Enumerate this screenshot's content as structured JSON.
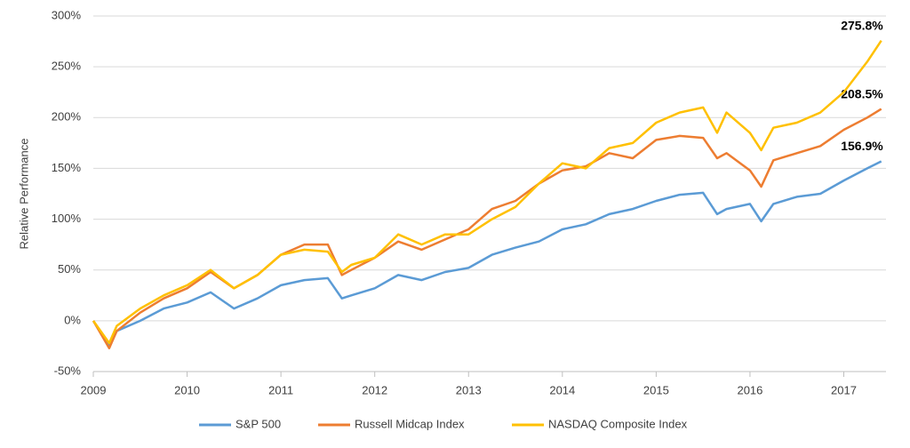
{
  "chart_data": {
    "type": "line",
    "y_label": "Relative Performance",
    "x": [
      2009,
      2009.17,
      2009.25,
      2009.5,
      2009.75,
      2010,
      2010.25,
      2010.5,
      2010.75,
      2011,
      2011.25,
      2011.5,
      2011.65,
      2011.75,
      2012,
      2012.25,
      2012.5,
      2012.75,
      2013,
      2013.25,
      2013.5,
      2013.75,
      2014,
      2014.25,
      2014.5,
      2014.75,
      2015,
      2015.25,
      2015.5,
      2015.65,
      2015.75,
      2016,
      2016.12,
      2016.25,
      2016.5,
      2016.75,
      2017,
      2017.25,
      2017.4
    ],
    "series": [
      {
        "name": "S&P 500",
        "color": "#5b9bd5",
        "values": [
          0,
          -25,
          -10,
          0,
          12,
          18,
          28,
          12,
          22,
          35,
          40,
          42,
          22,
          25,
          32,
          45,
          40,
          48,
          52,
          65,
          72,
          78,
          90,
          95,
          105,
          110,
          118,
          124,
          126,
          105,
          110,
          115,
          98,
          115,
          122,
          125,
          138,
          150,
          156.9
        ],
        "value_labels": [
          null,
          null,
          null,
          null,
          null,
          null,
          null,
          null,
          null,
          null,
          null,
          null,
          null,
          null,
          null,
          null,
          null,
          null,
          null,
          null,
          null,
          null,
          null,
          null,
          null,
          null,
          null,
          null,
          null,
          null,
          null,
          null,
          null,
          null,
          null,
          null,
          null,
          null,
          "156.9%"
        ]
      },
      {
        "name": "Russell Midcap Index",
        "color": "#ed7d31",
        "values": [
          0,
          -27,
          -10,
          8,
          22,
          32,
          48,
          32,
          45,
          65,
          75,
          75,
          45,
          50,
          62,
          78,
          70,
          80,
          90,
          110,
          118,
          135,
          148,
          152,
          165,
          160,
          178,
          182,
          180,
          160,
          165,
          148,
          132,
          158,
          165,
          172,
          188,
          200,
          208.5
        ],
        "value_labels": [
          null,
          null,
          null,
          null,
          null,
          null,
          null,
          null,
          null,
          null,
          null,
          null,
          null,
          null,
          null,
          null,
          null,
          null,
          null,
          null,
          null,
          null,
          null,
          null,
          null,
          null,
          null,
          null,
          null,
          null,
          null,
          null,
          null,
          null,
          null,
          null,
          null,
          null,
          "208.5%"
        ]
      },
      {
        "name": "NASDAQ Composite Index",
        "color": "#ffc000",
        "values": [
          0,
          -22,
          -5,
          12,
          25,
          35,
          50,
          32,
          45,
          65,
          70,
          68,
          48,
          55,
          62,
          85,
          75,
          85,
          85,
          100,
          112,
          135,
          155,
          150,
          170,
          175,
          195,
          205,
          210,
          185,
          205,
          185,
          168,
          190,
          195,
          205,
          225,
          255,
          275.8
        ],
        "value_labels": [
          null,
          null,
          null,
          null,
          null,
          null,
          null,
          null,
          null,
          null,
          null,
          null,
          null,
          null,
          null,
          null,
          null,
          null,
          null,
          null,
          null,
          null,
          null,
          null,
          null,
          null,
          null,
          null,
          null,
          null,
          null,
          null,
          null,
          null,
          null,
          null,
          null,
          null,
          "275.8%"
        ]
      }
    ],
    "xlim": [
      2009,
      2017.45
    ],
    "xticks": [
      2009,
      2010,
      2011,
      2012,
      2013,
      2014,
      2015,
      2016,
      2017
    ],
    "ylim": [
      -50,
      300
    ],
    "yticks": [
      {
        "value": -50,
        "label": "-50%"
      },
      {
        "value": 0,
        "label": "0%"
      },
      {
        "value": 50,
        "label": "50%"
      },
      {
        "value": 100,
        "label": "100%"
      },
      {
        "value": 150,
        "label": "150%"
      },
      {
        "value": 200,
        "label": "200%"
      },
      {
        "value": 250,
        "label": "250%"
      },
      {
        "value": 300,
        "label": "300%"
      }
    ],
    "grid": true,
    "legend": "bottom"
  }
}
